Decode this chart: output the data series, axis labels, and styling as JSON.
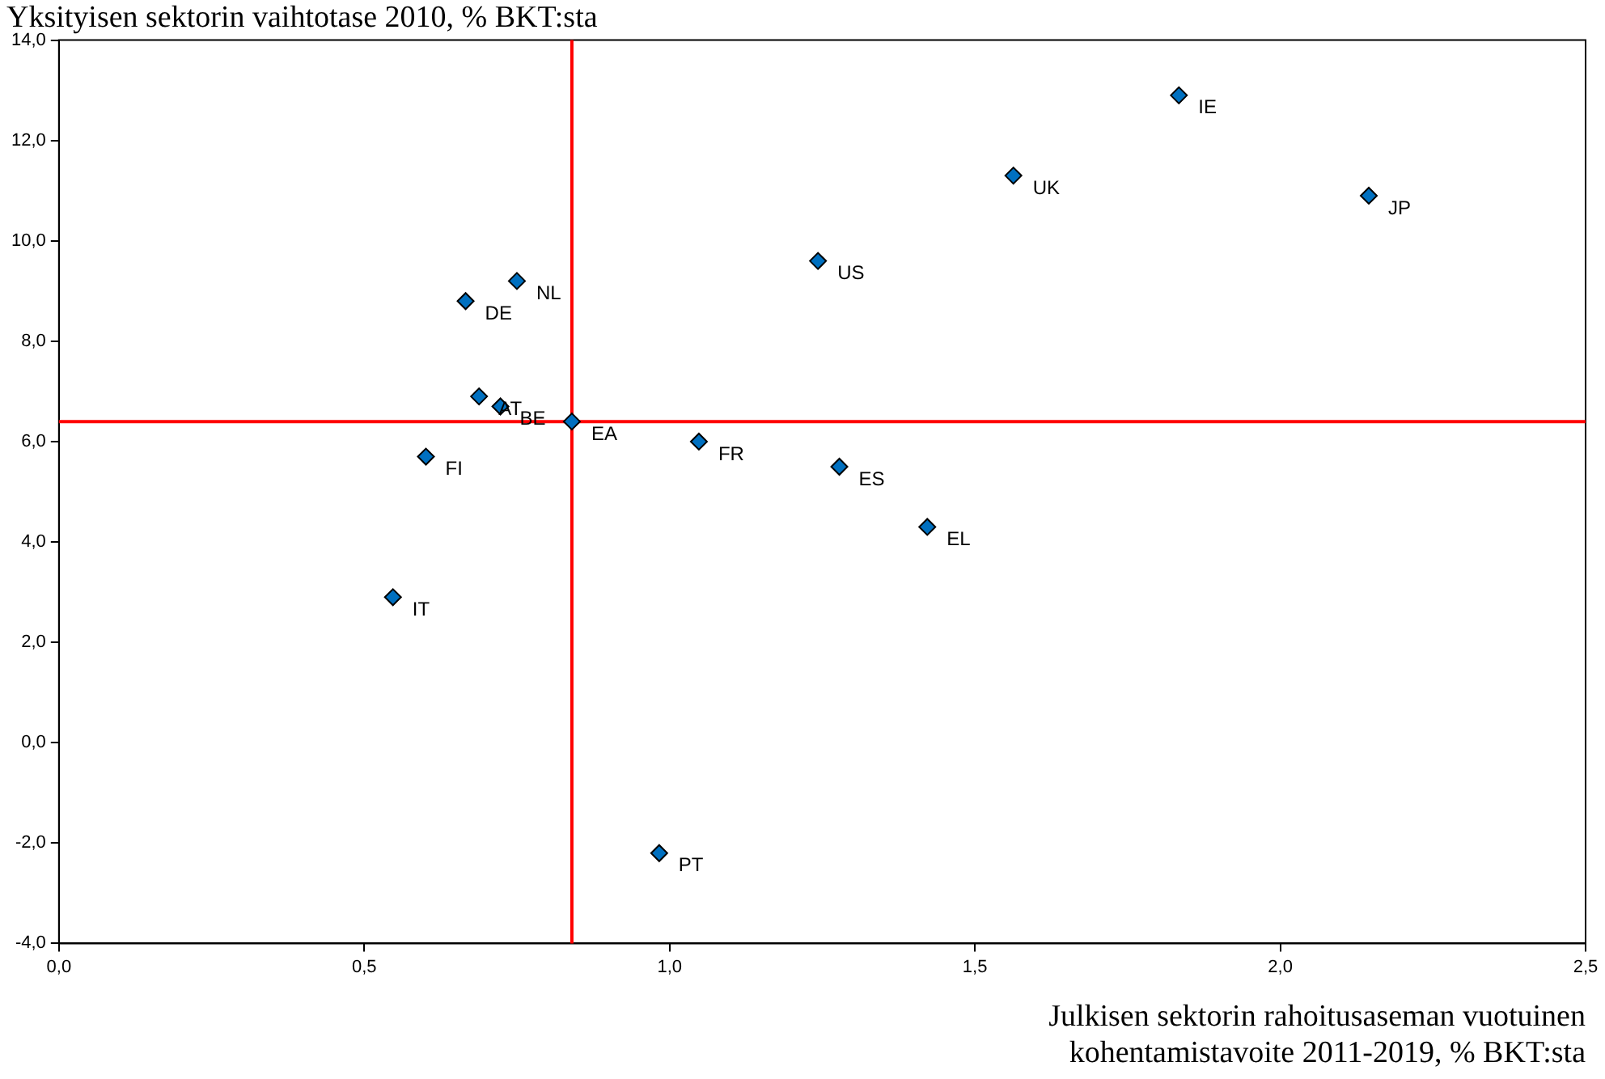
{
  "chart_data": {
    "type": "scatter",
    "title": "Yksityisen sektorin vaihtotase 2010, % BKT:sta",
    "xlabel": "Julkisen sektorin rahoitusaseman vuotuinen kohentamistavoite 2011-2019, % BKT:sta",
    "series": [
      {
        "color": "#0070c0",
        "x": [
          1.834,
          1.563,
          2.145,
          1.243,
          0.75,
          0.666,
          0.688,
          0.723,
          0.84,
          1.048,
          0.601,
          1.278,
          1.422,
          0.547,
          0.983
        ],
        "values": [
          12.9,
          11.3,
          10.9,
          9.6,
          9.2,
          8.8,
          6.9,
          6.7,
          6.4,
          6.0,
          5.7,
          5.5,
          4.3,
          2.9,
          -2.2
        ]
      }
    ],
    "annotations": [
      {
        "text": "IE",
        "x": 1.834,
        "y": 12.9
      },
      {
        "text": "UK",
        "x": 1.563,
        "y": 11.3
      },
      {
        "text": "JP",
        "x": 2.145,
        "y": 10.9
      },
      {
        "text": "US",
        "x": 1.243,
        "y": 9.6
      },
      {
        "text": "NL",
        "x": 0.75,
        "y": 9.2
      },
      {
        "text": "DE",
        "x": 0.666,
        "y": 8.8
      },
      {
        "text": "AT",
        "x": 0.688,
        "y": 6.9
      },
      {
        "text": "BE",
        "x": 0.723,
        "y": 6.7
      },
      {
        "text": "EA",
        "x": 0.84,
        "y": 6.4
      },
      {
        "text": "FR",
        "x": 1.048,
        "y": 6.0
      },
      {
        "text": "FI",
        "x": 0.601,
        "y": 5.7
      },
      {
        "text": "ES",
        "x": 1.278,
        "y": 5.5
      },
      {
        "text": "EL",
        "x": 1.422,
        "y": 4.3
      },
      {
        "text": "IT",
        "x": 0.547,
        "y": 2.9
      },
      {
        "text": "PT",
        "x": 0.983,
        "y": -2.2
      }
    ],
    "ref_lines": [
      {
        "axis": "x",
        "value": 0.84,
        "color": "#ff0000"
      },
      {
        "axis": "y",
        "value": 6.4,
        "color": "#ff0000"
      }
    ],
    "xlim": [
      0,
      2.5
    ],
    "xticks": [
      {
        "value": 0,
        "label": "0,0"
      },
      {
        "value": 0.5,
        "label": "0,5"
      },
      {
        "value": 1,
        "label": "1,0"
      },
      {
        "value": 1.5,
        "label": "1,5"
      },
      {
        "value": 2,
        "label": "2,0"
      },
      {
        "value": 2.5,
        "label": "2,5"
      }
    ],
    "ylim": [
      -4,
      14
    ],
    "yticks": [
      {
        "value": -4,
        "label": "-4,0"
      },
      {
        "value": -2,
        "label": "-2,0"
      },
      {
        "value": 0,
        "label": "0,0"
      },
      {
        "value": 2,
        "label": "2,0"
      },
      {
        "value": 4,
        "label": "4,0"
      },
      {
        "value": 6,
        "label": "6,0"
      },
      {
        "value": 8,
        "label": "8,0"
      },
      {
        "value": 10,
        "label": "10,0"
      },
      {
        "value": 12,
        "label": "12,0"
      },
      {
        "value": 14,
        "label": "14,0"
      }
    ],
    "marker": "diamond",
    "grid": false,
    "legend": false
  }
}
